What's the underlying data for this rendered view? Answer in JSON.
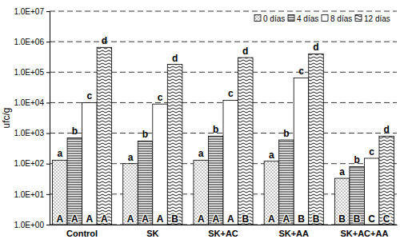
{
  "chart_data": {
    "type": "bar",
    "y_label": "ufc/g",
    "categories": [
      "Control",
      "SK",
      "SK+AC",
      "SK+AA",
      "SK+AC+AA"
    ],
    "series": [
      {
        "name": "0 días",
        "color": "#ffffff",
        "values": [
          130,
          100,
          130,
          120,
          33
        ],
        "annotations_top": [
          "a",
          "a",
          "a",
          "a",
          "a"
        ],
        "annotations_bottom": [
          "A",
          "A",
          "A",
          "A",
          "B"
        ]
      },
      {
        "name": "4 días",
        "color": "#ffffff",
        "values": [
          700,
          550,
          800,
          600,
          80
        ],
        "annotations_top": [
          "b",
          "b",
          "b",
          "b",
          "b"
        ],
        "annotations_bottom": [
          "A",
          "A",
          "A",
          "A",
          "B"
        ]
      },
      {
        "name": "8 días",
        "color": "#ffffff",
        "values": [
          10000,
          9000,
          12000,
          65000,
          150
        ],
        "annotations_top": [
          "c",
          "c",
          "c",
          "c",
          "c"
        ],
        "annotations_bottom": [
          "A",
          "A",
          "A",
          "B",
          "C"
        ]
      },
      {
        "name": "12 días",
        "color": "#ffffff",
        "values": [
          650000,
          180000,
          300000,
          400000,
          800
        ],
        "annotations_top": [
          "d",
          "d",
          "d",
          "d",
          "d"
        ],
        "annotations_bottom": [
          "A",
          "B",
          "B",
          "B",
          "C"
        ]
      }
    ],
    "log": "y",
    "ylim": [
      1,
      10000000
    ],
    "yticks": [
      {
        "value": 1,
        "label": "1.0E+00"
      },
      {
        "value": 10,
        "label": "1.0E+01"
      },
      {
        "value": 100,
        "label": "1.0E+02"
      },
      {
        "value": 1000,
        "label": "1.0E+03"
      },
      {
        "value": 10000,
        "label": "1.0E+04"
      },
      {
        "value": 100000,
        "label": "1.0E+05"
      },
      {
        "value": 1000000,
        "label": "1.0E+06"
      },
      {
        "value": 10000000,
        "label": "1.0E+07"
      }
    ],
    "grid": true,
    "legend": "upper right"
  }
}
